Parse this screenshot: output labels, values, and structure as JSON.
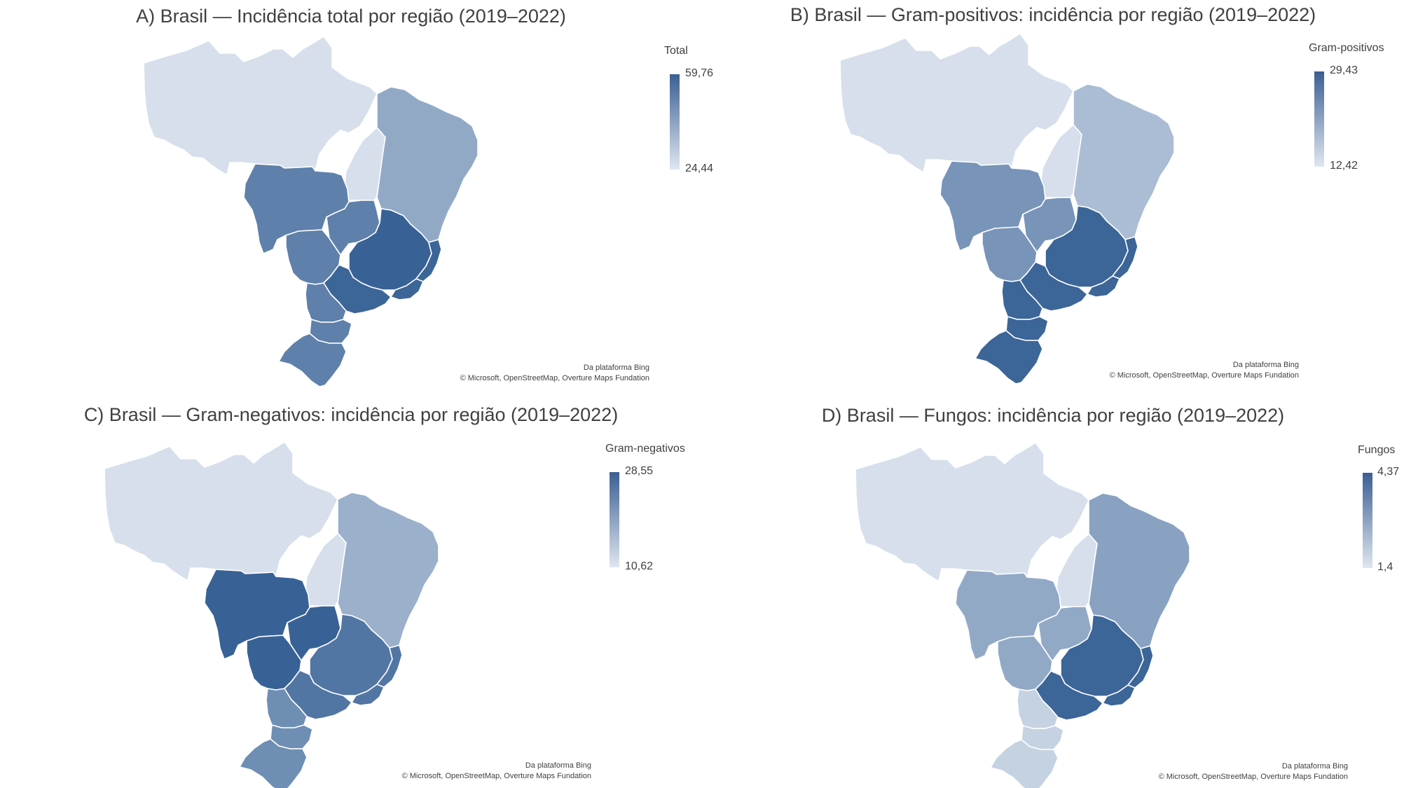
{
  "colors": {
    "low": "#dfe6f0",
    "high": "#335e93",
    "border": "#ffffff"
  },
  "attribution": {
    "line1": "Da plataforma Bing",
    "line2": "© Microsoft, OpenStreetMap, Overture Maps Fundation"
  },
  "panels": [
    {
      "title": "A) Brasil — Incidência total por região (2019–2022)",
      "legend": {
        "title": "Total",
        "max": "59,76",
        "min": "24,44"
      },
      "levels": {
        "norte": 0.05,
        "tocantins": 0.05,
        "nordeste": 0.45,
        "mt": 0.75,
        "ms": 0.75,
        "go": 0.75,
        "mg": 0.97,
        "sp": 0.95,
        "rj": 0.95,
        "es": 0.95,
        "pr": 0.75,
        "sc": 0.75,
        "rs": 0.75
      }
    },
    {
      "title": "B) Brasil — Gram-positivos: incidência por região (2019–2022)",
      "legend": {
        "title": "Gram-positivos",
        "max": "29,43",
        "min": "12,42"
      },
      "levels": {
        "norte": 0.05,
        "tocantins": 0.05,
        "nordeste": 0.3,
        "mt": 0.6,
        "ms": 0.6,
        "go": 0.6,
        "mg": 0.95,
        "sp": 0.95,
        "rj": 0.95,
        "es": 0.95,
        "pr": 0.95,
        "sc": 0.95,
        "rs": 0.95
      }
    },
    {
      "title": "C) Brasil — Gram-negativos: incidência por região (2019–2022)",
      "legend": {
        "title": "Gram-negativos",
        "max": "28,55",
        "min": "10,62"
      },
      "levels": {
        "norte": 0.05,
        "tocantins": 0.05,
        "nordeste": 0.4,
        "mt": 0.97,
        "ms": 0.97,
        "go": 0.97,
        "mg": 0.82,
        "sp": 0.82,
        "rj": 0.82,
        "es": 0.82,
        "pr": 0.65,
        "sc": 0.65,
        "rs": 0.65
      }
    },
    {
      "title": "D) Brasil — Fungos: incidência por região (2019–2022)",
      "legend": {
        "title": "Fungos",
        "max": "4,37",
        "min": "1,4"
      },
      "levels": {
        "norte": 0.05,
        "tocantins": 0.05,
        "nordeste": 0.5,
        "mt": 0.45,
        "ms": 0.45,
        "go": 0.45,
        "mg": 0.95,
        "sp": 0.95,
        "rj": 0.95,
        "es": 0.95,
        "pr": 0.15,
        "sc": 0.15,
        "rs": 0.15
      }
    }
  ]
}
